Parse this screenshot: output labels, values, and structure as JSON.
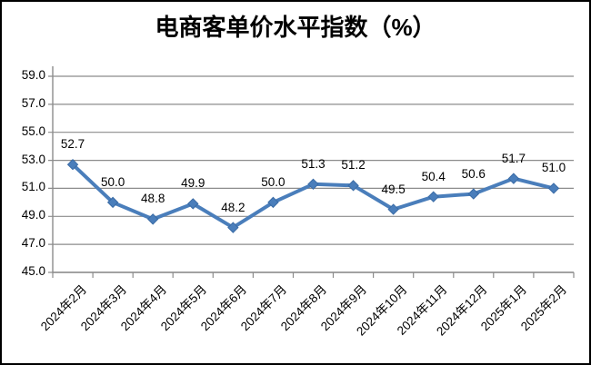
{
  "chart_data": {
    "type": "line",
    "title": "电商客单价水平指数（%）",
    "categories": [
      "2024年2月",
      "2024年3月",
      "2024年4月",
      "2024年5月",
      "2024年6月",
      "2024年7月",
      "2024年8月",
      "2024年9月",
      "2024年10月",
      "2024年11月",
      "2024年12月",
      "2025年1月",
      "2025年2月"
    ],
    "values": [
      52.7,
      50.0,
      48.8,
      49.9,
      48.2,
      50.0,
      51.3,
      51.2,
      49.5,
      50.4,
      50.6,
      51.7,
      51.0
    ],
    "data_labels": [
      "52.7",
      "50.0",
      "48.8",
      "49.9",
      "48.2",
      "50.0",
      "51.3",
      "51.2",
      "49.5",
      "50.4",
      "50.6",
      "51.7",
      "51.0"
    ],
    "yticks": [
      "59.0",
      "57.0",
      "55.0",
      "53.0",
      "51.0",
      "49.0",
      "47.0",
      "45.0"
    ],
    "ylim": [
      45.0,
      59.0
    ],
    "ytick_step": 2.0,
    "xlabel": "",
    "ylabel": "",
    "grid": true,
    "legend": "none",
    "marker": "diamond",
    "colors": {
      "line": "#4A7EBB",
      "marker": "#4A7EBB",
      "marker_edge": "#3A6BA5",
      "gridline": "#8C8C8C",
      "axis": "#8C8C8C",
      "text": "#000000",
      "background": "#FFFFFF",
      "border": "#000000"
    }
  }
}
